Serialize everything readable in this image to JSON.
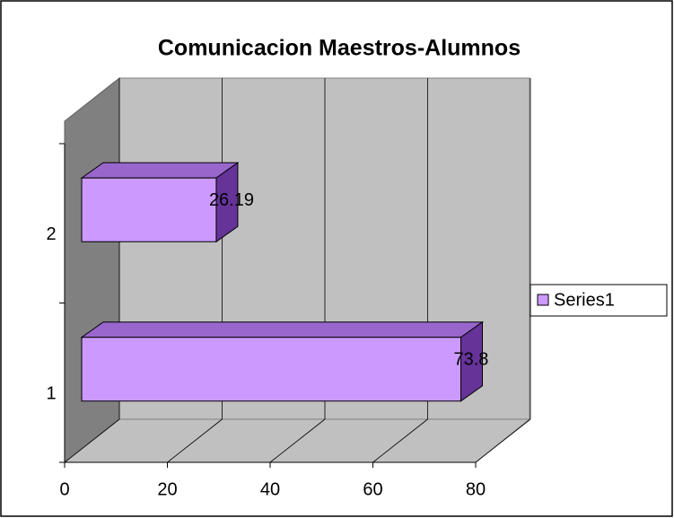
{
  "chart_data": {
    "type": "bar",
    "orientation": "horizontal",
    "title": "Comunicacion Maestros-Alumnos",
    "categories": [
      "1",
      "2"
    ],
    "series": [
      {
        "name": "Series1",
        "color": "#cc99ff",
        "values": [
          73.8,
          26.19
        ]
      }
    ],
    "xlim": [
      0,
      80
    ],
    "xticks": [
      0,
      20,
      40,
      60,
      80
    ],
    "grid": true,
    "legend": "right"
  }
}
